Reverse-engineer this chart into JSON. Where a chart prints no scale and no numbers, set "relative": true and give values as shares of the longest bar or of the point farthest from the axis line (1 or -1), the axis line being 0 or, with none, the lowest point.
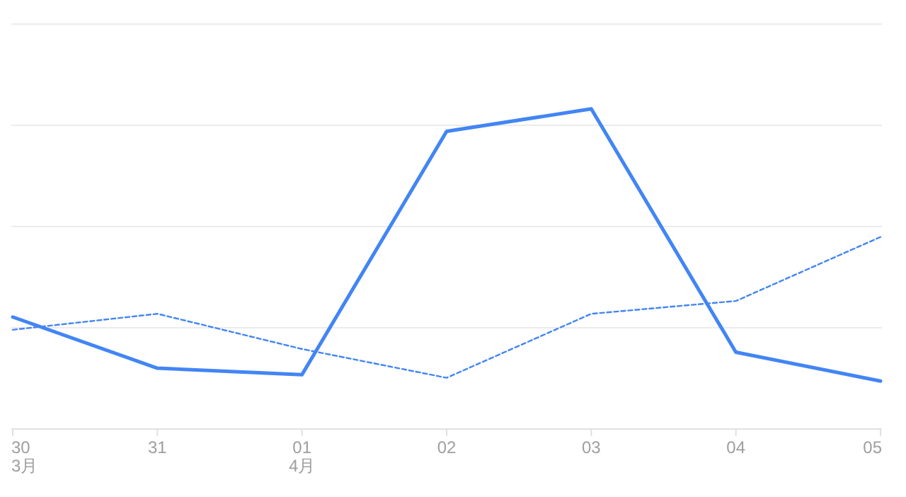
{
  "chart_data": {
    "type": "line",
    "relative": true,
    "grid": "y",
    "categories": [
      "30\n3月",
      "31",
      "01\n4月",
      "02",
      "03",
      "04",
      "05"
    ],
    "series": [
      {
        "color": "#4285f4",
        "line_style": "solid",
        "values": [
          0.35,
          0.19,
          0.17,
          0.93,
          1,
          0.24,
          0.15
        ]
      },
      {
        "color": "#4285f4",
        "line_style": "dashed",
        "values": [
          0.31,
          0.36,
          0.25,
          0.16,
          0.36,
          0.4,
          0.6
        ]
      }
    ]
  }
}
